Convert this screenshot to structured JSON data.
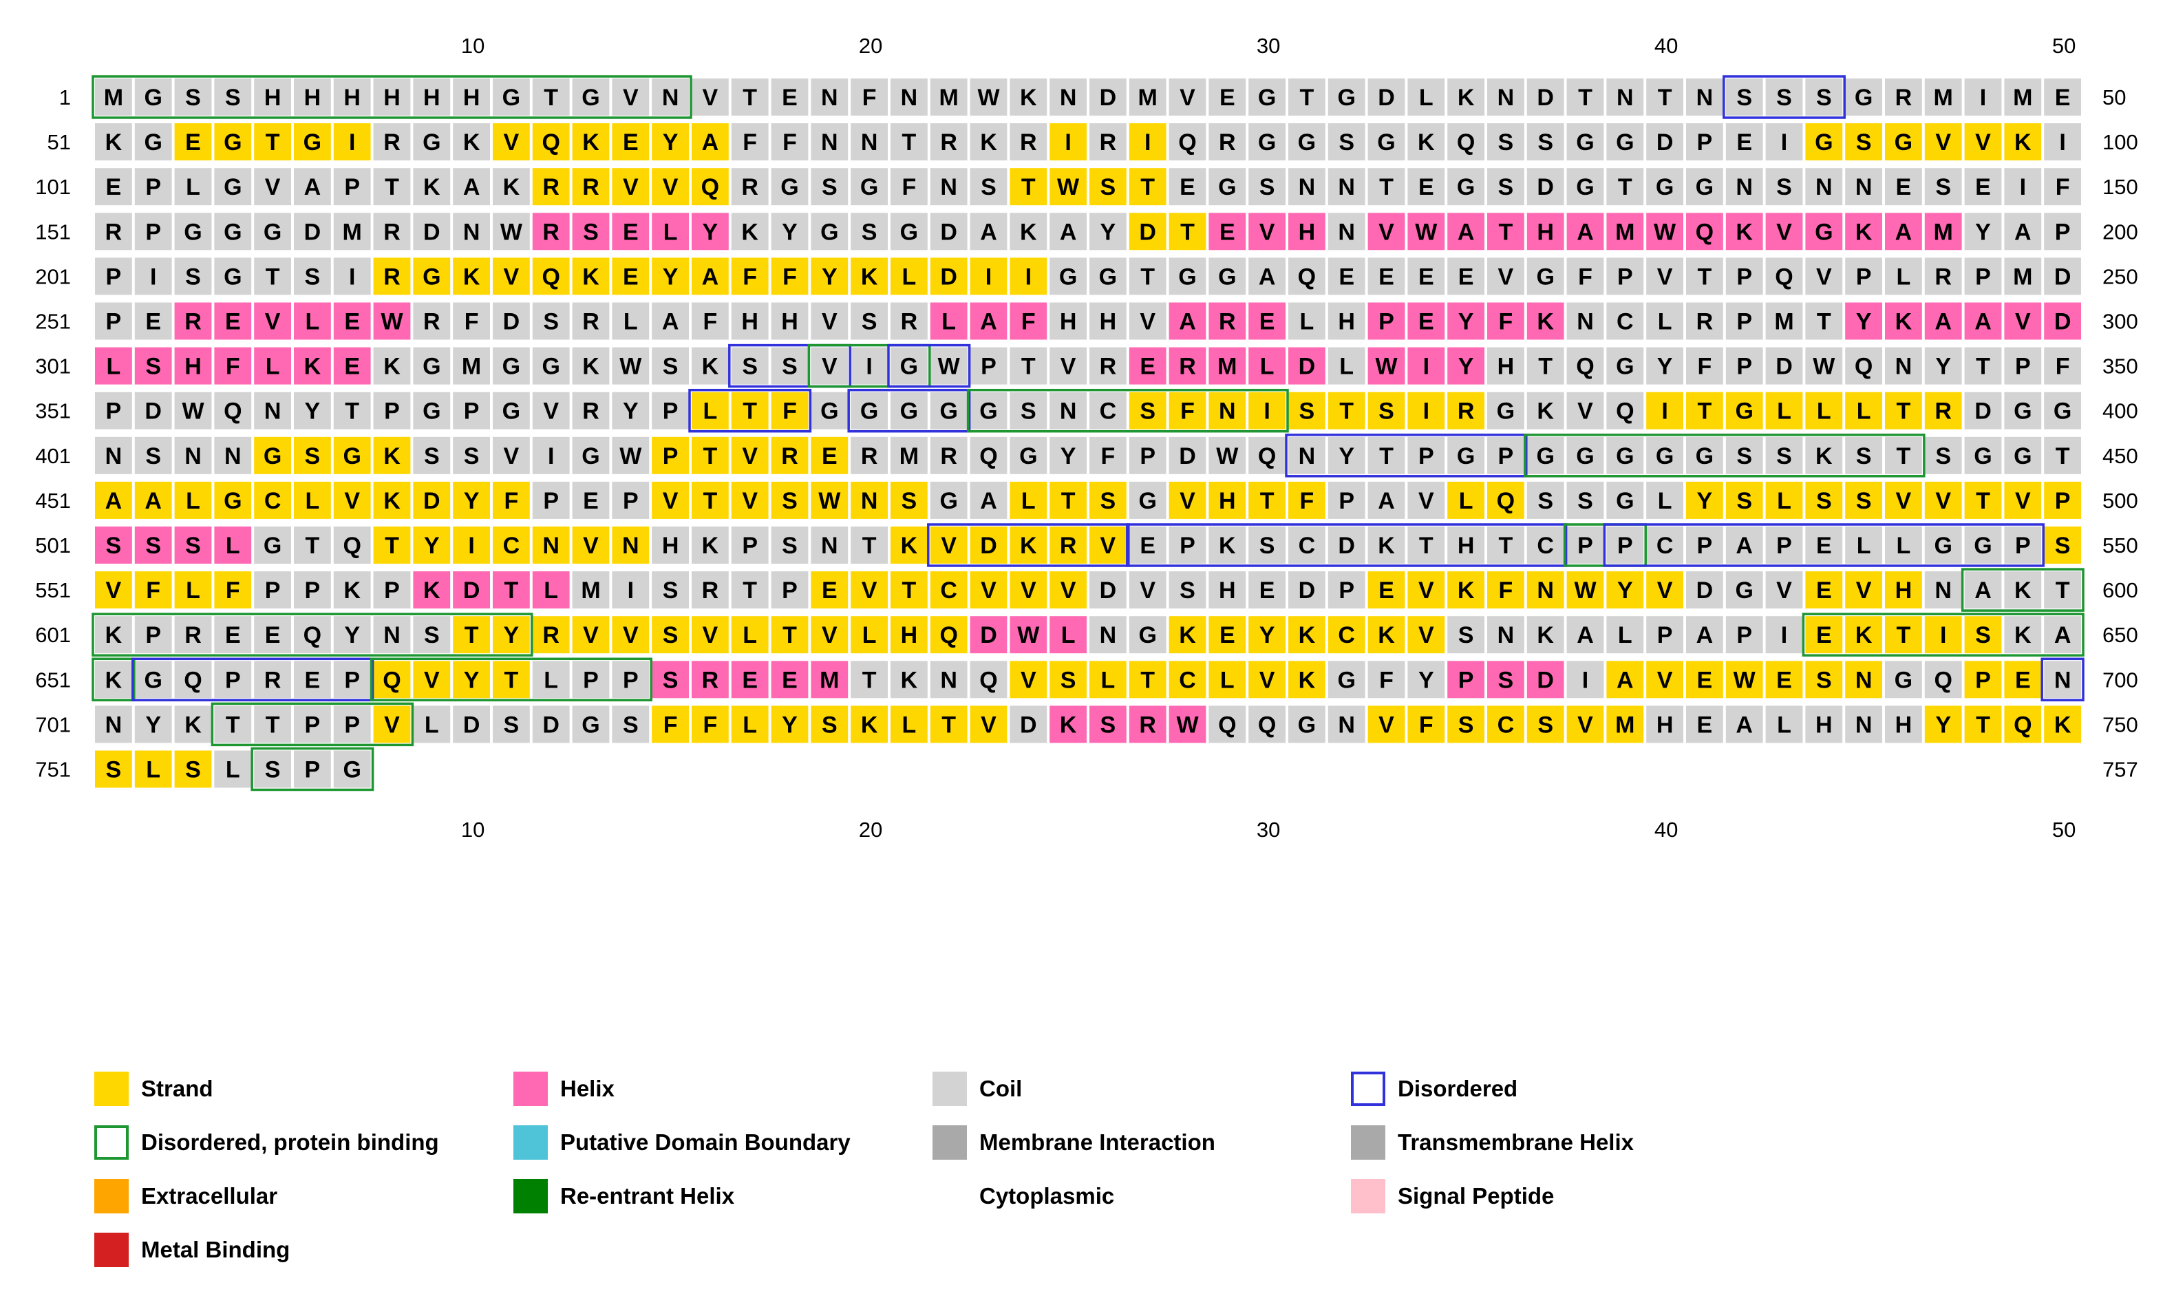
{
  "ruler": [
    "10",
    "20",
    "30",
    "40",
    "50"
  ],
  "rows": [
    {
      "start": "1",
      "end": "50",
      "seq": "MGSSHHHHHHGTGVNVTENFNMWKNDMVEGTGDLKNDTNTNSSSGRMIME",
      "ss": "CCCCCCCCCCCCCCCCCCCCCCCCCCCCCCCCCCCCCCCCCCCCCCCCCC"
    },
    {
      "start": "51",
      "end": "100",
      "seq": "KGEGTGIRGKVQKEYAFFNNTRKRIRIQRGGSGKQSSGGDPEIGSGVVKI",
      "ss": "CCEEEEECCCEEEEEECCCCCCCCECECCCCCCCCCCCCCCCCEEEEEEC"
    },
    {
      "start": "101",
      "end": "150",
      "seq": "EPLGVAPTKAKRRVVQRGSGFNSTWSTEGSNNTEGSDGTGGNSNNESEIF",
      "ss": "CCCCCCCCCCCEEEEECCCCCCCEEEECCCCCCCCCCCCCCCCCCCCCCC"
    },
    {
      "start": "151",
      "end": "200",
      "seq": "RPGGGDMRDNWRSELYKYGSGDAKAYDTEVHNVWATHAMWQKVGKAMYAP",
      "ss": "CCCCCCCCCCCHHHHHCCCCCCCCCCEEHHHCHHHHHHHHHHHHHHHCCC"
    },
    {
      "start": "201",
      "end": "250",
      "seq": "PISGTSIRGKVQKEYAFFYKLDIIGGTGGAQEEEEVGFPVTPQVPLRPMD",
      "ss": "CCCCCCCEEEEEEEEEEEEEEEEECCCCCCCCCCCCCCCCCCCCCCCCCC"
    },
    {
      "start": "251",
      "end": "300",
      "seq": "PEREVLEWRFDSRLAFHHVSRLAFHHVARELHPEYFKNCLRPMTYKAAVD",
      "ss": "CCHHHHHHCCCCCCCCCCCCCHHHCCCHHHCCHHHHHCCCCCCCHHHHHH"
    },
    {
      "start": "301",
      "end": "350",
      "seq": "LSHFLKEKGMGGKWSKSSVIGWPTVRERMLDLWIYHTQGYFPDWQNYTPF",
      "ss": "HHHHHHHCCCCCCCCCCCCCCCCCCCHHHHHCHHHCCCCCCCCCCCCCCC"
    },
    {
      "start": "351",
      "end": "400",
      "seq": "PDWQNYTPGPGVRYPLTFGGGGGSNCSFNISTSIRGKVQITGLLLTRDGG",
      "ss": "CCCCCCCCCCCCCCCEEECCCCCCCCEEEEEEEEECCCCEEEEEEEECCC"
    },
    {
      "start": "401",
      "end": "450",
      "seq": "NSNNGSGKSSVIGWPTVRERMRQGYFPDWQNYTPGPGGGGGSSKSTSGGT",
      "ss": "CCCCEEEECCCCCCEEEEECCCCCCCCCCCCCCCCCCCCCCCCCCCCCCC"
    },
    {
      "start": "451",
      "end": "500",
      "seq": "AALGCLVKDYFPEPVTVSWNSGALTSGVHTFPAVLQSSGLYSLSSVVTVP",
      "ss": "EEEEEEEEEEECCCEEEEEEECCEEECEEEECCCEECCCCEEEEEEEEEE"
    },
    {
      "start": "501",
      "end": "550",
      "seq": "SSSLGTQTYICNVNHKPSNTKVDKRVEPKSCDKTHTCPPCPAPELLGGPS",
      "ss": "HHHHCCCEEEEEEECCCCCCEEEEEECCCCCCCCCCCCCCCCCCCCCCCE"
    },
    {
      "start": "551",
      "end": "600",
      "seq": "VFLFPPKPKDTLMISRTPEVTCVVVDVSHEDPEVKFNWYVDGVEVHNAKT",
      "ss": "EEEECCCCHHHHCCCCCCEEEEEEECCCCCCCEEEEEEEECCCEEECCCC"
    },
    {
      "start": "601",
      "end": "650",
      "seq": "KPREEQYNSTYRVVSVLTVLHQDWLNGKEYKCKVSNKALPAPIEKTISKA",
      "ss": "CCCCCCCCCEEEEEEEEEEEEEHHHCCEEEEEEECCCCCCCCCEEEEECC"
    },
    {
      "start": "651",
      "end": "700",
      "seq": "KGQPREPQVYTLPPSREEMTKNQVSLTCLVKGFYPSDIAVEWESNGQPEN",
      "ss": "CCCCCCCEEEECCCHHHHHCCCCEEEEEEEECCCHHHCEEEEEEECCEEC"
    },
    {
      "start": "701",
      "end": "750",
      "seq": "NYKTTPPVLDSDGSFFLYSKLTVDKSRWQQGNVFSCSVMHEALHNHYTQK",
      "ss": "CCCCCCCECCCCCCEEEEEEEEECHHHHCCCCEEEEEEECCCCCCCEEEE"
    },
    {
      "start": "751",
      "end": "757",
      "seq": "SLSLSPG",
      "ss": "EEECCCC"
    }
  ],
  "annotations": [
    {
      "type": "bind",
      "row": 0,
      "from": 1,
      "to": 15
    },
    {
      "type": "dis",
      "row": 0,
      "from": 42,
      "to": 44
    },
    {
      "type": "dis",
      "row": 6,
      "from": 17,
      "to": 19
    },
    {
      "type": "bind",
      "row": 6,
      "from": 19,
      "to": 21
    },
    {
      "type": "dis",
      "row": 6,
      "from": 21,
      "to": 22
    },
    {
      "type": "dis",
      "row": 7,
      "from": 16,
      "to": 18
    },
    {
      "type": "dis",
      "row": 7,
      "from": 20,
      "to": 22
    },
    {
      "type": "bind",
      "row": 7,
      "from": 23,
      "to": 30
    },
    {
      "type": "dis",
      "row": 8,
      "from": 31,
      "to": 36
    },
    {
      "type": "bind",
      "row": 8,
      "from": 37,
      "to": 46
    },
    {
      "type": "dis",
      "row": 10,
      "from": 22,
      "to": 26
    },
    {
      "type": "dis",
      "row": 10,
      "from": 27,
      "to": 37
    },
    {
      "type": "bind",
      "row": 10,
      "from": 38,
      "to": 39
    },
    {
      "type": "dis",
      "row": 10,
      "from": 39,
      "to": 49
    },
    {
      "type": "bind",
      "row": 11,
      "from": 48,
      "to": 50
    },
    {
      "type": "bind",
      "row": 12,
      "from": 1,
      "to": 11
    },
    {
      "type": "bind",
      "row": 12,
      "from": 44,
      "to": 50
    },
    {
      "type": "bind",
      "row": 13,
      "from": 1,
      "to": 1
    },
    {
      "type": "dis",
      "row": 13,
      "from": 2,
      "to": 7
    },
    {
      "type": "bind",
      "row": 13,
      "from": 8,
      "to": 14
    },
    {
      "type": "dis",
      "row": 13,
      "from": 50,
      "to": 50
    },
    {
      "type": "bind",
      "row": 14,
      "from": 4,
      "to": 8
    },
    {
      "type": "bind",
      "row": 15,
      "from": 5,
      "to": 7
    }
  ],
  "colors": {
    "E": "#FFD700",
    "H": "#FF69B4",
    "C": "#D3D3D3",
    "bind": "#1E9632",
    "dis": "#3232DC"
  },
  "legend": [
    {
      "label": "Strand",
      "color": "#FFD700",
      "style": "fill"
    },
    {
      "label": "Helix",
      "color": "#FF69B4",
      "style": "fill"
    },
    {
      "label": "Coil",
      "color": "#D3D3D3",
      "style": "fill"
    },
    {
      "label": "Disordered",
      "color": "#3232DC",
      "style": "outline"
    },
    {
      "label": "Disordered, protein binding",
      "color": "#1E9632",
      "style": "outline"
    },
    {
      "label": "Putative Domain Boundary",
      "color": "#4FC3D8",
      "style": "fill"
    },
    {
      "label": "Membrane Interaction",
      "color": "#A9A9A9",
      "style": "fill"
    },
    {
      "label": "Transmembrane Helix",
      "color": "#A9A9A9",
      "style": "fill"
    },
    {
      "label": "Extracellular",
      "color": "#FFA500",
      "style": "fill"
    },
    {
      "label": "Re-entrant Helix",
      "color": "#008000",
      "style": "fill"
    },
    {
      "label": "Cytoplasmic",
      "color": "#FFFFFF",
      "style": "none"
    },
    {
      "label": "Signal Peptide",
      "color": "#FFC0CB",
      "style": "fill"
    },
    {
      "label": "Metal Binding",
      "color": "#D42020",
      "style": "fill"
    }
  ]
}
